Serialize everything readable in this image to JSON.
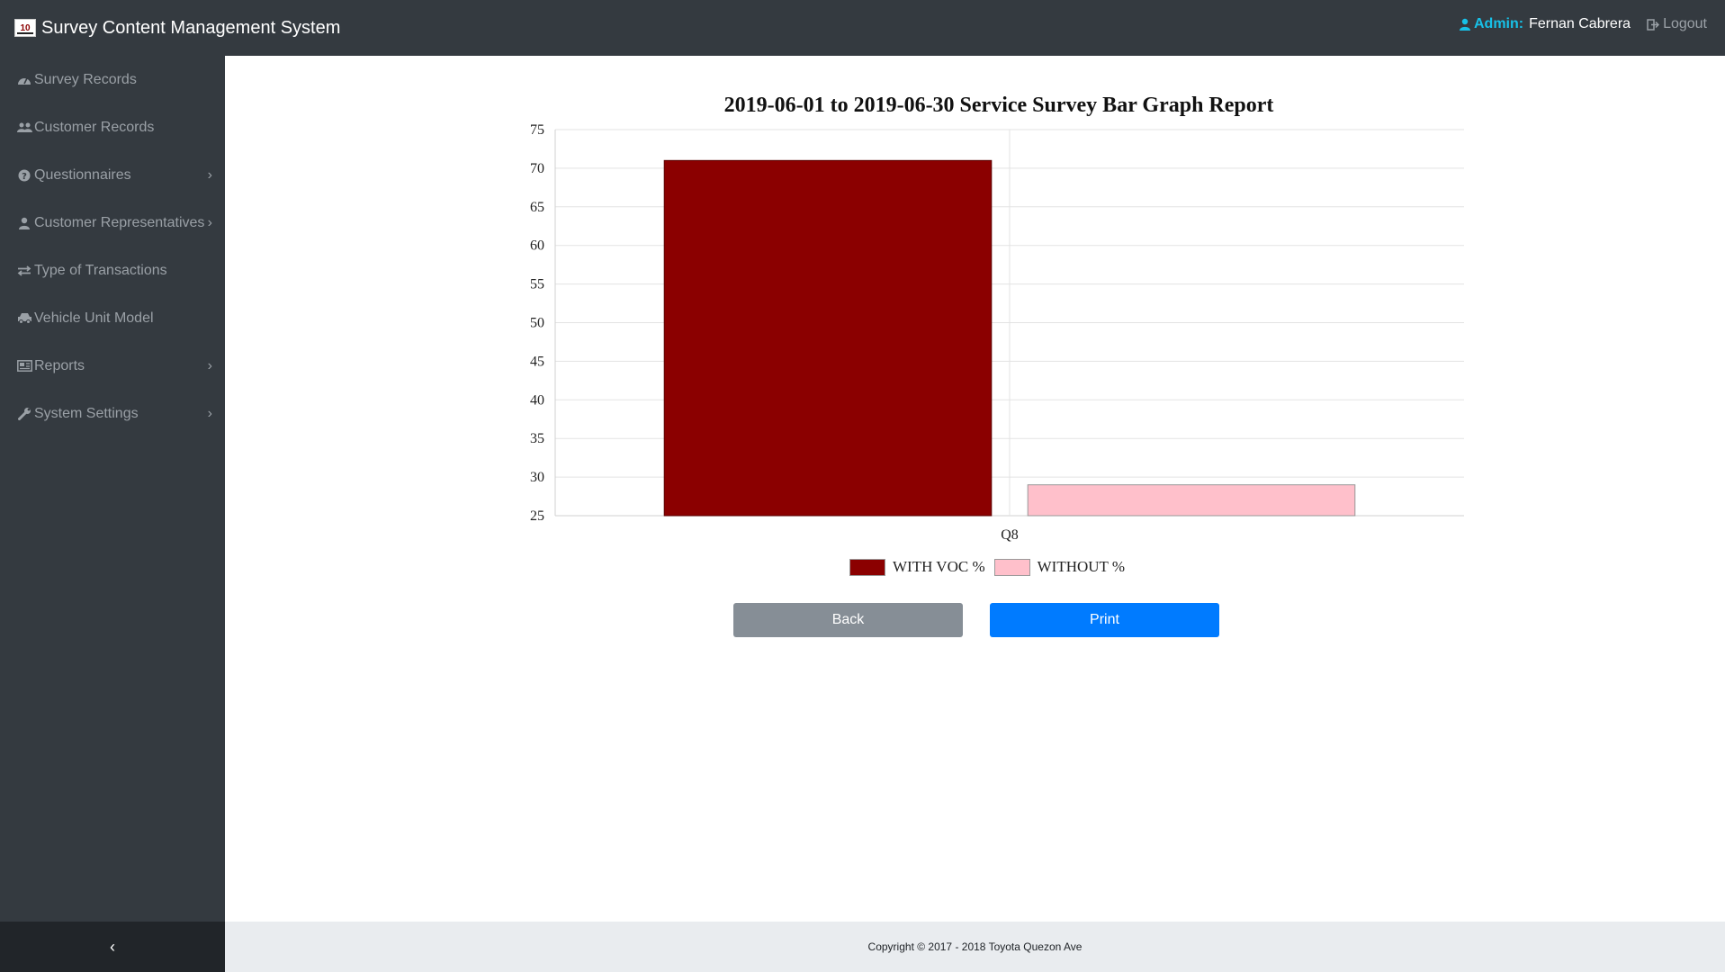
{
  "app": {
    "title": "Survey Content Management System",
    "admin_label": "Admin:",
    "admin_name": "Fernan Cabrera",
    "logout_label": "Logout"
  },
  "sidebar": {
    "items": [
      {
        "label": "Survey Records",
        "icon": "dashboard-icon",
        "has_submenu": false
      },
      {
        "label": "Customer Records",
        "icon": "users-icon",
        "has_submenu": false
      },
      {
        "label": "Questionnaires",
        "icon": "question-circle-icon",
        "has_submenu": true
      },
      {
        "label": "Customer Representatives",
        "icon": "user-icon",
        "has_submenu": true
      },
      {
        "label": "Type of Transactions",
        "icon": "exchange-icon",
        "has_submenu": false
      },
      {
        "label": "Vehicle Unit Model",
        "icon": "car-icon",
        "has_submenu": false
      },
      {
        "label": "Reports",
        "icon": "report-icon",
        "has_submenu": true
      },
      {
        "label": "System Settings",
        "icon": "wrench-icon",
        "has_submenu": true
      }
    ],
    "collapse_icon": "chevron-left-icon"
  },
  "chart_data": {
    "type": "bar",
    "title": "2019-06-01 to 2019-06-30 Service Survey Bar Graph Report",
    "categories": [
      "Q8"
    ],
    "series": [
      {
        "name": "WITH VOC %",
        "values": [
          71
        ],
        "color": "#8b0000"
      },
      {
        "name": "WITHOUT %",
        "values": [
          29
        ],
        "color": "#ffc0cb"
      }
    ],
    "xlabel": "",
    "ylabel": "",
    "ylim": [
      25,
      75
    ],
    "yticks": [
      "75",
      "70",
      "65",
      "60",
      "55",
      "50",
      "45",
      "40",
      "35",
      "30",
      "25"
    ],
    "grid": true,
    "legend_position": "bottom"
  },
  "buttons": {
    "back_label": "Back",
    "print_label": "Print"
  },
  "footer": {
    "copyright": "Copyright © 2017 - 2018 Toyota Quezon Ave"
  }
}
